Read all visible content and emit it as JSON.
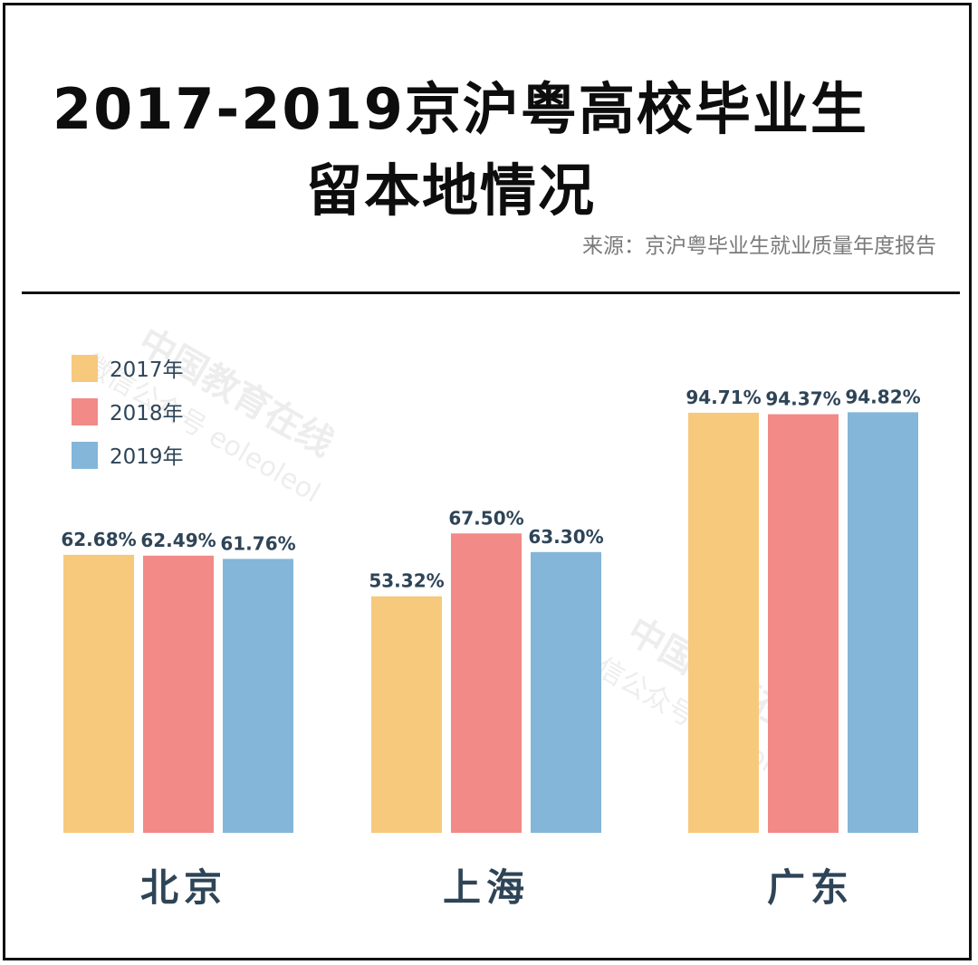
{
  "title_line1": "2017-2019京沪粤高校毕业生",
  "title_line2": "留本地情况",
  "source": "来源：京沪粤毕业生就业质量年度报告",
  "watermark": {
    "name": "中国教育在线",
    "account": "微信公众号 eoleoleol"
  },
  "colors": {
    "2017": "#f7c97c",
    "2018": "#f28a87",
    "2019": "#84b6d9",
    "label": "#2e4457"
  },
  "chart_data": {
    "type": "bar",
    "categories": [
      "北京",
      "上海",
      "广东"
    ],
    "series": [
      {
        "name": "2017年",
        "values": [
          62.68,
          53.32,
          94.71
        ],
        "labels": [
          "62.68%",
          "53.32%",
          "94.71%"
        ],
        "color": "#f7c97c"
      },
      {
        "name": "2018年",
        "values": [
          62.49,
          67.5,
          94.37
        ],
        "labels": [
          "62.49%",
          "67.50%",
          "94.37%"
        ],
        "color": "#f28a87"
      },
      {
        "name": "2019年",
        "values": [
          61.76,
          63.3,
          94.82
        ],
        "labels": [
          "61.76%",
          "63.30%",
          "94.82%"
        ],
        "color": "#84b6d9"
      }
    ],
    "title": "2017-2019京沪粤高校毕业生留本地情况",
    "xlabel": "",
    "ylabel": "",
    "legend": "top-left",
    "grid": false
  }
}
